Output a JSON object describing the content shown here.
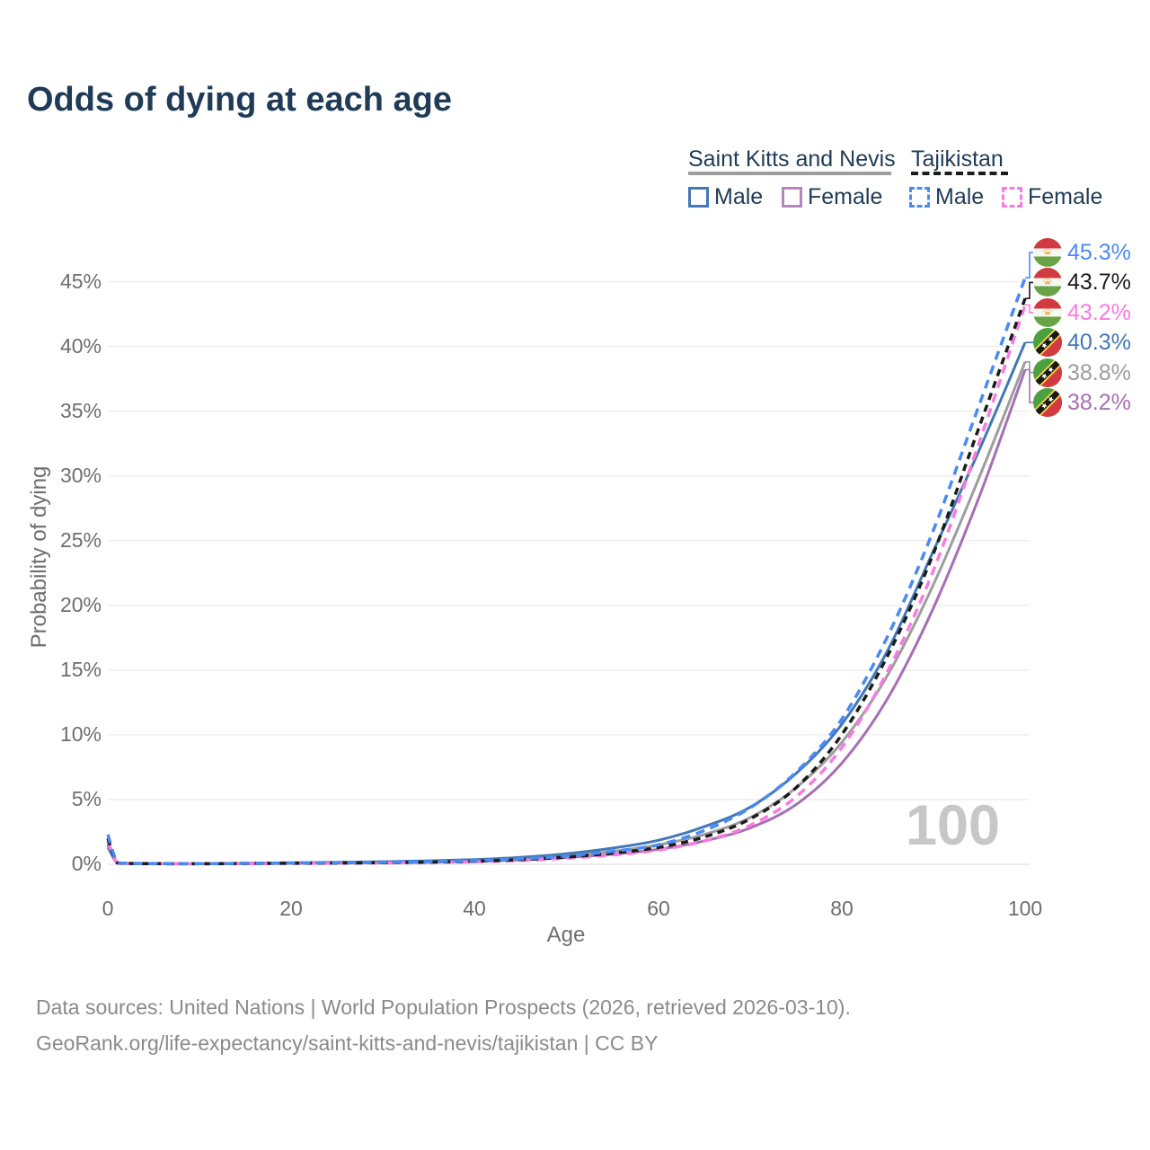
{
  "title": "Odds of dying at each age",
  "watermark_age": "100",
  "axes": {
    "x_label": "Age",
    "y_label": "Probability of dying"
  },
  "footer": {
    "line1": "Data sources: United Nations | World Population Prospects (2026, retrieved 2026-03-10).",
    "line2": "GeoRank.org/life-expectancy/saint-kitts-and-nevis/tajikistan | CC BY"
  },
  "legend": {
    "groups": [
      {
        "country": "Saint Kitts and Nevis",
        "line_style": "solid",
        "underline_color": "#9d9d9d",
        "items": [
          {
            "label": "Male",
            "color": "#4377b5"
          },
          {
            "label": "Female",
            "color": "#b487ba"
          }
        ]
      },
      {
        "country": "Tajikistan",
        "line_style": "dashed",
        "underline_color": "#1c1c1c",
        "items": [
          {
            "label": "Male",
            "color": "#4a8af4"
          },
          {
            "label": "Female",
            "color": "#fb7ae1"
          }
        ]
      }
    ]
  },
  "chart_data": {
    "type": "line",
    "title": "Odds of dying at each age",
    "xlabel": "Age",
    "ylabel": "Probability of dying",
    "xlim": [
      0,
      100
    ],
    "ylim": [
      0,
      47.5
    ],
    "x_ticks": [
      0,
      20,
      40,
      60,
      80,
      100
    ],
    "y_ticks_percent": [
      0,
      5,
      10,
      15,
      20,
      25,
      30,
      35,
      40,
      45
    ],
    "grid": "horizontal",
    "legend_position": "top-right",
    "ages": [
      0,
      1,
      2,
      3,
      5,
      10,
      15,
      20,
      25,
      30,
      35,
      40,
      45,
      50,
      55,
      60,
      65,
      70,
      75,
      80,
      85,
      90,
      95,
      100
    ],
    "series": [
      {
        "id": "skn_female",
        "country": "Saint Kitts and Nevis",
        "sex": "Female",
        "flag": "kn",
        "color": "#a76fb3",
        "dash": "solid",
        "end_label": "38.2%",
        "end_value": 38.2,
        "values": [
          1.3,
          0.09,
          0.06,
          0.05,
          0.04,
          0.04,
          0.05,
          0.07,
          0.09,
          0.12,
          0.16,
          0.23,
          0.34,
          0.52,
          0.78,
          1.15,
          1.8,
          2.8,
          4.6,
          7.8,
          12.8,
          19.8,
          28.4,
          38.2
        ]
      },
      {
        "id": "skn_total",
        "country": "Saint Kitts and Nevis",
        "sex": "Both",
        "flag": "kn",
        "color": "#9d9d9d",
        "dash": "solid",
        "end_label": "38.8%",
        "end_value": 38.8,
        "values": [
          1.45,
          0.1,
          0.06,
          0.05,
          0.045,
          0.045,
          0.065,
          0.1,
          0.13,
          0.165,
          0.22,
          0.3,
          0.44,
          0.67,
          1.0,
          1.5,
          2.3,
          3.6,
          5.9,
          9.4,
          14.6,
          21.6,
          29.9,
          38.8
        ]
      },
      {
        "id": "skn_male",
        "country": "Saint Kitts and Nevis",
        "sex": "Male",
        "flag": "kn",
        "color": "#4377b5",
        "dash": "solid",
        "end_label": "40.3%",
        "end_value": 40.3,
        "values": [
          1.6,
          0.11,
          0.07,
          0.06,
          0.05,
          0.05,
          0.08,
          0.12,
          0.16,
          0.2,
          0.27,
          0.37,
          0.54,
          0.82,
          1.25,
          1.85,
          2.9,
          4.4,
          7.0,
          10.8,
          16.5,
          24.2,
          32.0,
          40.3
        ]
      },
      {
        "id": "tjk_female",
        "country": "Tajikistan",
        "sex": "Female",
        "flag": "tj",
        "color": "#fb7ae1",
        "dash": "dashed",
        "end_label": "43.2%",
        "end_value": 43.2,
        "values": [
          1.8,
          0.12,
          0.07,
          0.05,
          0.045,
          0.04,
          0.05,
          0.07,
          0.085,
          0.11,
          0.14,
          0.2,
          0.3,
          0.47,
          0.72,
          1.1,
          1.8,
          3.0,
          5.2,
          9.0,
          14.9,
          22.7,
          32.6,
          43.2
        ]
      },
      {
        "id": "tjk_total",
        "country": "Tajikistan",
        "sex": "Both",
        "flag": "tj",
        "color": "#1c1c1c",
        "dash": "dashed",
        "end_label": "43.7%",
        "end_value": 43.7,
        "values": [
          2.0,
          0.14,
          0.08,
          0.06,
          0.05,
          0.045,
          0.06,
          0.085,
          0.1,
          0.13,
          0.17,
          0.24,
          0.36,
          0.56,
          0.86,
          1.3,
          2.1,
          3.5,
          5.9,
          10.0,
          16.1,
          24.0,
          33.8,
          43.7
        ]
      },
      {
        "id": "tjk_male",
        "country": "Tajikistan",
        "sex": "Male",
        "flag": "tj",
        "color": "#4a8af4",
        "dash": "dashed",
        "end_label": "45.3%",
        "end_value": 45.3,
        "values": [
          2.3,
          0.16,
          0.09,
          0.07,
          0.06,
          0.05,
          0.07,
          0.1,
          0.12,
          0.15,
          0.2,
          0.28,
          0.42,
          0.65,
          1.0,
          1.5,
          2.6,
          4.35,
          7.1,
          11.2,
          17.6,
          25.8,
          35.5,
          45.3
        ]
      }
    ]
  }
}
